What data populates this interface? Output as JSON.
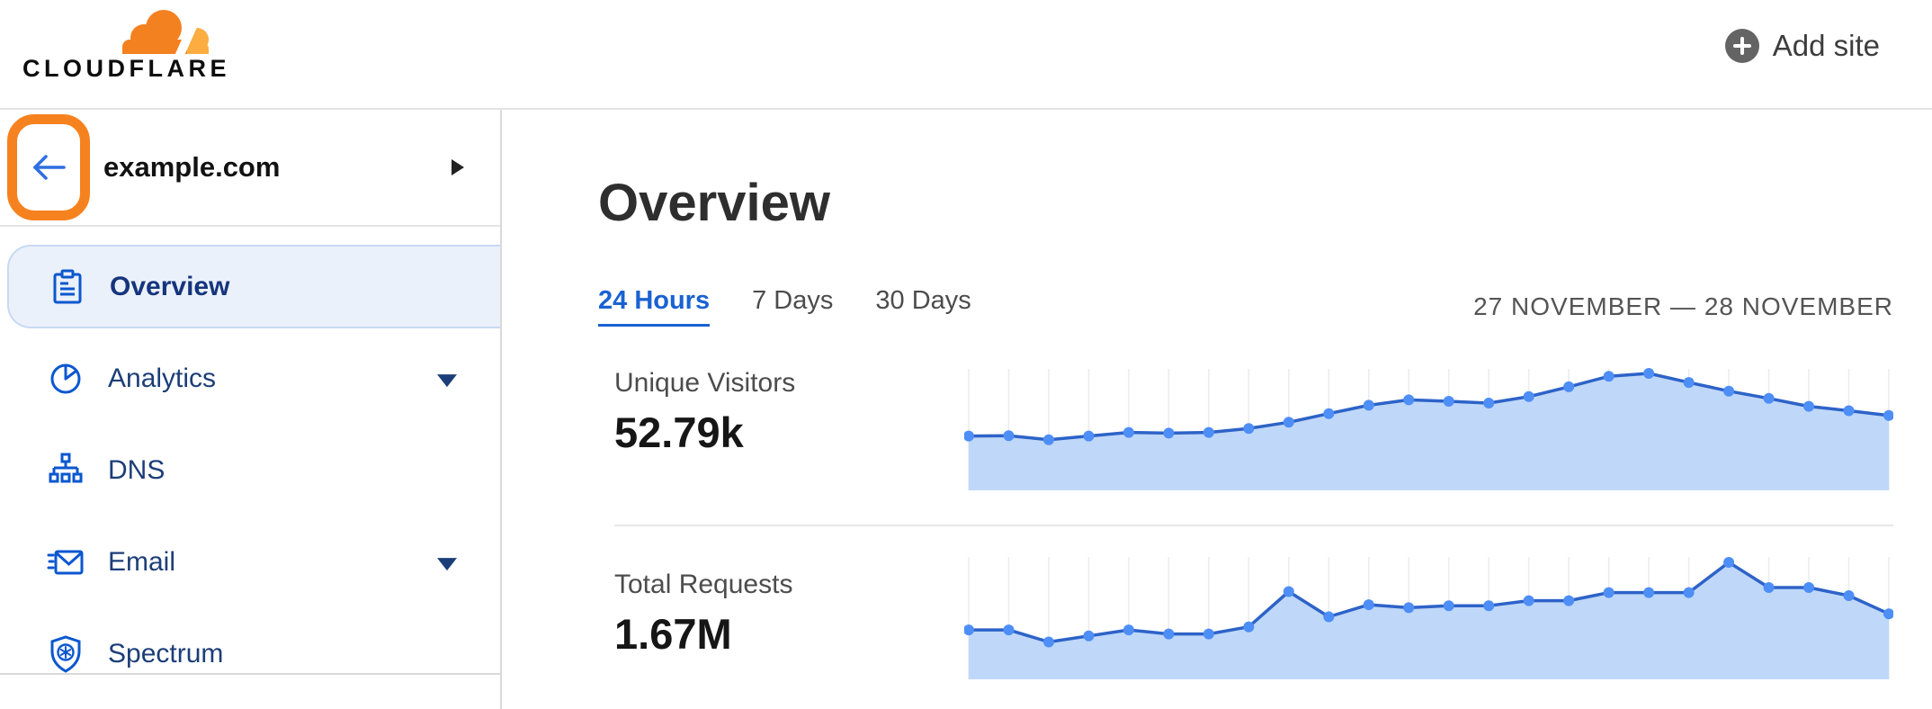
{
  "header": {
    "logo_text": "CLOUDFLARE",
    "add_site_label": "Add site"
  },
  "sidebar": {
    "site_name": "example.com",
    "items": [
      {
        "label": "Overview",
        "icon": "clipboard-icon",
        "selected": true,
        "has_caret": false
      },
      {
        "label": "Analytics",
        "icon": "pie-chart-icon",
        "selected": false,
        "has_caret": true
      },
      {
        "label": "DNS",
        "icon": "sitemap-icon",
        "selected": false,
        "has_caret": false
      },
      {
        "label": "Email",
        "icon": "email-icon",
        "selected": false,
        "has_caret": true
      },
      {
        "label": "Spectrum",
        "icon": "shield-icon",
        "selected": false,
        "has_caret": false
      }
    ]
  },
  "main": {
    "title": "Overview",
    "tabs": [
      {
        "label": "24 Hours",
        "active": true
      },
      {
        "label": "7 Days",
        "active": false
      },
      {
        "label": "30 Days",
        "active": false
      }
    ],
    "date_range": "27 NOVEMBER — 28 NOVEMBER"
  },
  "stats": [
    {
      "label": "Unique Visitors",
      "value": "52.79k"
    },
    {
      "label": "Total Requests",
      "value": "1.67M"
    }
  ],
  "colors": {
    "brand_orange": "#f6821f",
    "brand_orange_light": "#fbad41",
    "icon_blue": "#0b57cf",
    "sidebar_label_navy": "#1c3e78",
    "selected_item_bg": "#ebf1fb",
    "selected_item_border": "#c8d9f2",
    "active_tab_blue": "#1a62d3",
    "chart_dot": "#4e8ef7",
    "chart_line": "#2d63c8",
    "chart_fill": "#bfd8f9",
    "chart_grid": "#eaecf1",
    "back_arrow_blue": "#2f6fe0"
  },
  "chart_data": [
    {
      "type": "area",
      "title": "Unique Visitors",
      "total_label": "52.79k",
      "points": 24,
      "x_description": "24 hourly samples, 27–28 November (unlabeled axis)",
      "unit": "thousands of visitors",
      "values": [
        1.5,
        1.51,
        1.4,
        1.5,
        1.6,
        1.58,
        1.6,
        1.71,
        1.88,
        2.12,
        2.35,
        2.5,
        2.46,
        2.41,
        2.59,
        2.86,
        3.15,
        3.23,
        2.98,
        2.74,
        2.54,
        2.32,
        2.2,
        2.07
      ],
      "grid": "vertical-only",
      "legend": false,
      "markers": "circle"
    },
    {
      "type": "area",
      "title": "Total Requests",
      "total_label": "1.67M",
      "points": 24,
      "x_description": "24 hourly samples, 27–28 November (unlabeled axis)",
      "unit": "thousands of requests",
      "values": [
        49,
        49,
        37,
        43,
        49,
        45,
        45,
        52,
        87,
        62,
        74,
        71,
        73,
        73,
        78,
        78,
        86,
        86,
        86,
        116,
        91,
        91,
        83,
        65
      ],
      "grid": "vertical-only",
      "legend": false,
      "markers": "circle"
    }
  ]
}
